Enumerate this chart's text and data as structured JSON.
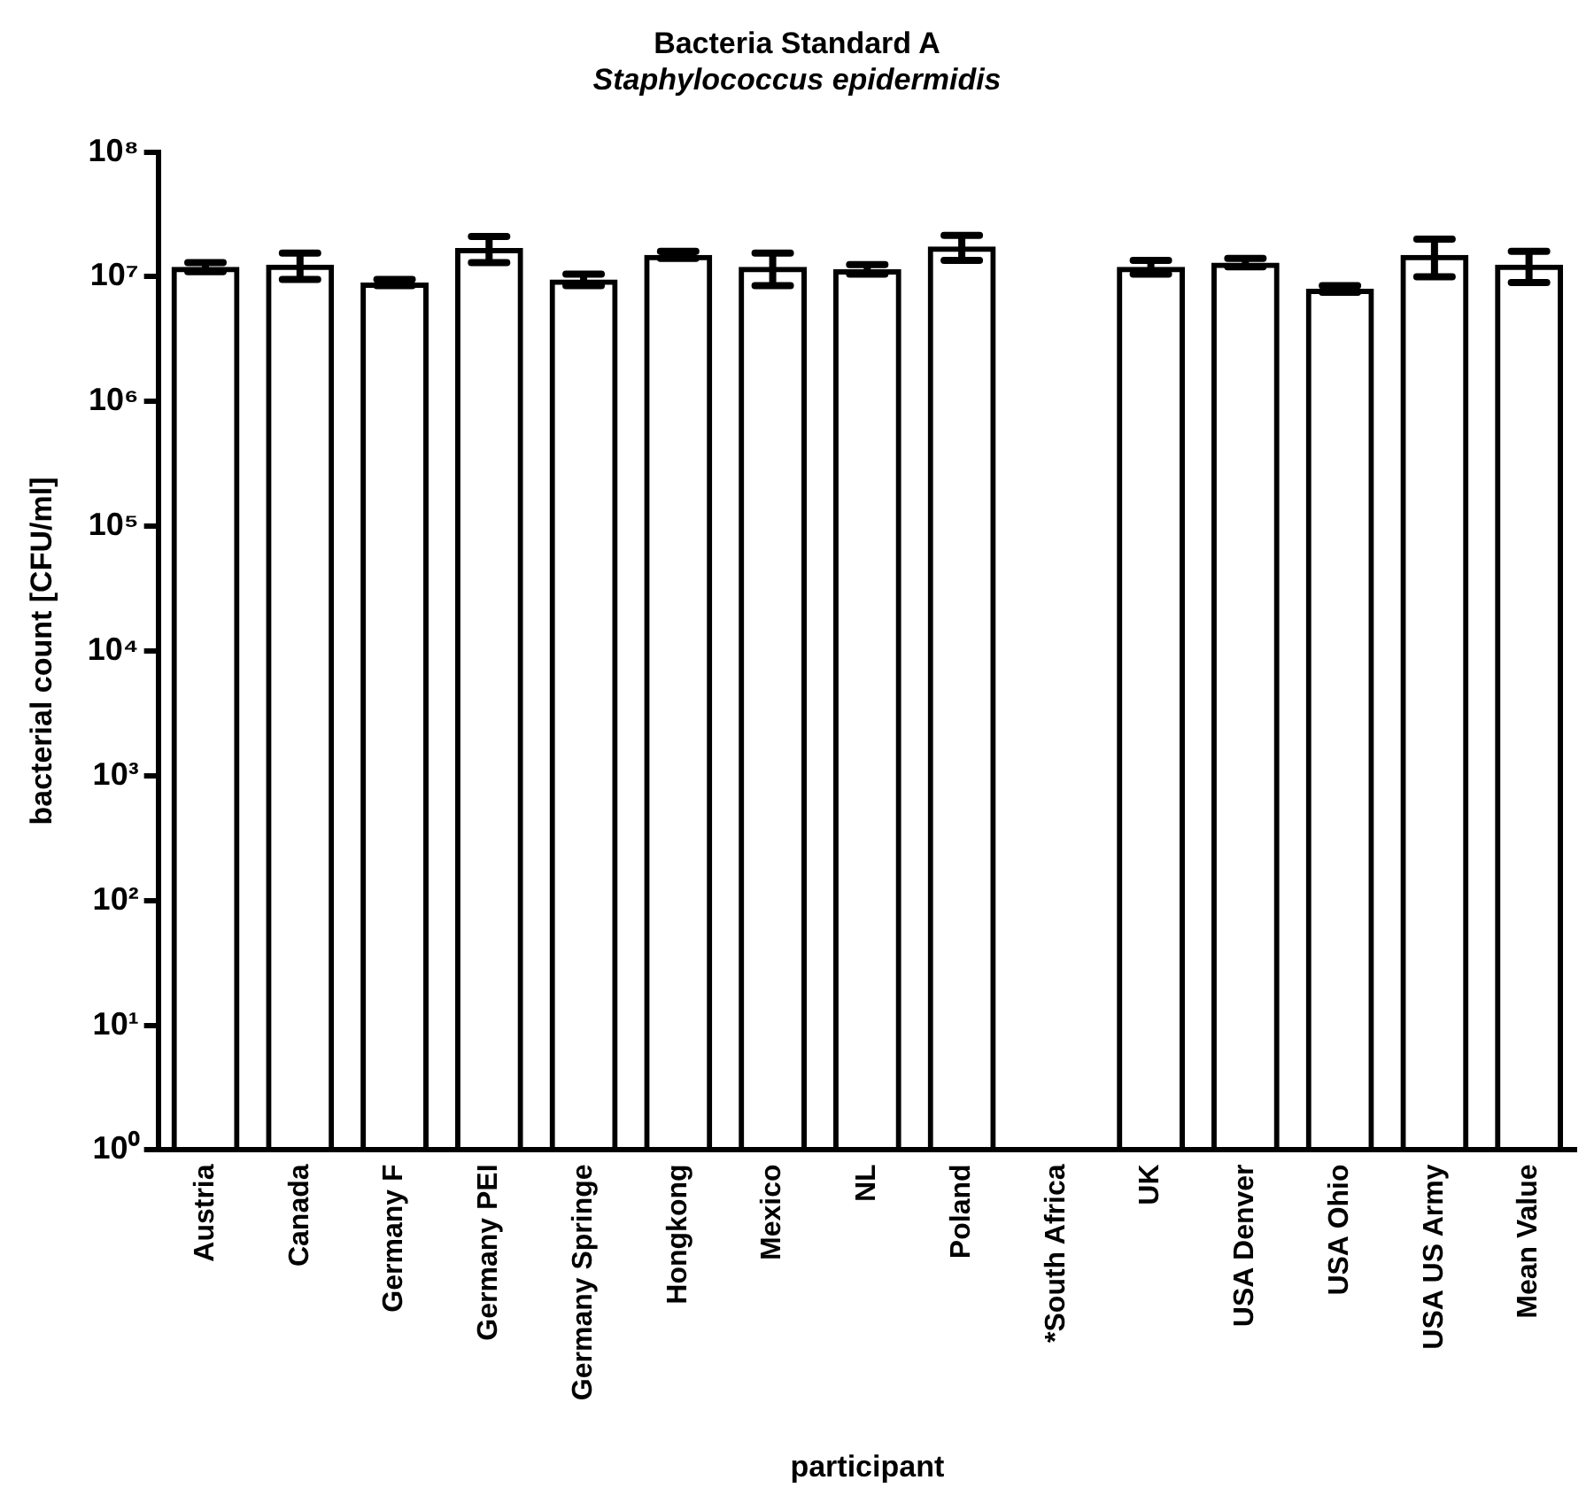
{
  "chart_data": {
    "type": "bar",
    "title": "Bacteria Standard A",
    "subtitle": "Staphylococcus epidermidis",
    "xlabel": "participant",
    "ylabel": "bacterial count [CFU/ml]",
    "categories": [
      "Austria",
      "Canada",
      "Germany F",
      "Germany PEI",
      "Germany Springe",
      "Hongkong",
      "Mexico",
      "NL",
      "Poland",
      "*South Africa",
      "UK",
      "USA Denver",
      "USA Ohio",
      "USA US Army",
      "Mean Value"
    ],
    "values": [
      12000000,
      12500000,
      9000000,
      17000000,
      9500000,
      15000000,
      12000000,
      11500000,
      17500000,
      null,
      12000000,
      13000000,
      8000000,
      15000000,
      12500000
    ],
    "errors": [
      1000000,
      3000000,
      500000,
      4000000,
      1000000,
      1000000,
      3500000,
      1000000,
      4000000,
      null,
      1500000,
      1000000,
      500000,
      5000000,
      3500000
    ],
    "color": "#000000",
    "log": true,
    "ylim": [
      1,
      100000000
    ],
    "yticks": [
      {
        "value": 1,
        "label": "10⁰"
      },
      {
        "value": 10,
        "label": "10¹"
      },
      {
        "value": 100,
        "label": "10²"
      },
      {
        "value": 1000,
        "label": "10³"
      },
      {
        "value": 10000,
        "label": "10⁴"
      },
      {
        "value": 100000,
        "label": "10⁵"
      },
      {
        "value": 1000000,
        "label": "10⁶"
      },
      {
        "value": 10000000,
        "label": "10⁷"
      },
      {
        "value": 100000000,
        "label": "10⁸"
      }
    ],
    "grid": false,
    "legend": false
  }
}
